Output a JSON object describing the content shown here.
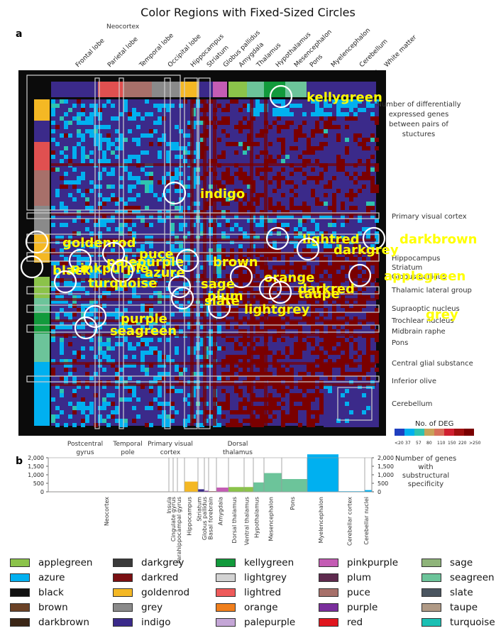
{
  "title": "Color Regions with Fixed-Sized Circles",
  "figure": {
    "panel_a": "a",
    "panel_b": "b",
    "neocortex": "Neocortex",
    "top_labels": [
      "Frontal lobe",
      "Parietal lobe",
      "Temporal lobe",
      "Occipital lobe",
      "Hippocampus",
      "Striatum",
      "Globus pallidus",
      "Amygdala",
      "Thalamus",
      "Hypothalamus",
      "Mesencephalon",
      "Pons",
      "Myelencephalon",
      "Cerebellum",
      "White matter"
    ],
    "right_note": "Number of differentially expressed genes between pairs of stuctures",
    "right_labels": [
      "Primary visual cortex",
      "Hippocampus",
      "Striatum",
      "Globus pallidus",
      "Thalamic lateral group",
      "Supraoptic nucleus",
      "Trochlear nucleus",
      "Midbrain raphe",
      "Pons",
      "Central glial substance",
      "Inferior olive",
      "Cerebellum"
    ],
    "bottom_labels": [
      "Postcentral gyrus",
      "Temporal pole",
      "Primary visual cortex",
      "Dorsal thalamus"
    ],
    "deg_title": "No. of DEG",
    "deg_ticks": [
      "<20",
      "37",
      "57",
      "80",
      "110",
      "150",
      "220",
      ">250"
    ],
    "deg_colors": [
      "#1f3fbf",
      "#00b0f0",
      "#2fc3b0",
      "#c9a25a",
      "#d8705a",
      "#d02030",
      "#a01010",
      "#7a0000"
    ],
    "panel_b_ticks": [
      "2,000",
      "1,500",
      "1,000",
      "500",
      "0"
    ],
    "panel_b_note": "Number of genes with substructural specificity",
    "panel_b_categories": [
      "Neocortex",
      "Insula",
      "Cingulate gyrus",
      "Parahippocampal gyrus",
      "Hippocampus",
      "Striatum",
      "Globus pallidus",
      "Basal forebrain",
      "Amygdala",
      "Dorsal thalamus",
      "Ventral thalamus",
      "Hypothalamus",
      "Mesencephalon",
      "Pons",
      "Myelencephalon",
      "Cerebellar cortex",
      "Cerebellar nuclei"
    ]
  },
  "chart_data": {
    "type": "heatmap",
    "title": "Color Regions with Fixed-Sized Circles",
    "annotations": [
      {
        "label": "kellygreen",
        "color": "#ffff00"
      },
      {
        "label": "indigo",
        "color": "#ffff00"
      },
      {
        "label": "goldenrod",
        "color": "#ffff00"
      },
      {
        "label": "lightred",
        "color": "#ffff00"
      },
      {
        "label": "darkbrown",
        "color": "#ffff00"
      },
      {
        "label": "darkgrey",
        "color": "#ffff00"
      },
      {
        "label": "puce",
        "color": "#ffff00"
      },
      {
        "label": "palepurple",
        "color": "#ffff00"
      },
      {
        "label": "pinkpurple",
        "color": "#ffff00"
      },
      {
        "label": "black",
        "color": "#ffff00"
      },
      {
        "label": "azure",
        "color": "#ffff00"
      },
      {
        "label": "brown",
        "color": "#ffff00"
      },
      {
        "label": "orange",
        "color": "#ffff00"
      },
      {
        "label": "applegreen",
        "color": "#ffff00"
      },
      {
        "label": "turquoise",
        "color": "#ffff00"
      },
      {
        "label": "sage",
        "color": "#ffff00"
      },
      {
        "label": "darkred",
        "color": "#ffff00"
      },
      {
        "label": "taupe",
        "color": "#ffff00"
      },
      {
        "label": "plum",
        "color": "#ffff00"
      },
      {
        "label": "slate",
        "color": "#ffff00"
      },
      {
        "label": "lightgrey",
        "color": "#ffff00"
      },
      {
        "label": "grey",
        "color": "#ffff00"
      },
      {
        "label": "purple",
        "color": "#ffff00"
      },
      {
        "label": "seagreen",
        "color": "#ffff00"
      }
    ],
    "panel_b_bars": {
      "categories": [
        "Neocortex",
        "Insula",
        "Cingulate gyrus",
        "Parahippocampal gyrus",
        "Hippocampus",
        "Striatum",
        "Globus pallidus",
        "Basal forebrain",
        "Amygdala",
        "Dorsal thalamus",
        "Ventral thalamus",
        "Hypothalamus",
        "Mesencephalon",
        "Pons",
        "Myelencephalon",
        "Cerebellar cortex",
        "Cerebellar nuclei"
      ],
      "values": [
        5,
        10,
        10,
        10,
        600,
        150,
        60,
        40,
        250,
        280,
        280,
        550,
        1100,
        750,
        2200,
        30,
        100
      ],
      "ylim": [
        0,
        2000
      ]
    },
    "legend": [
      {
        "name": "applegreen",
        "color": "#8bc34a"
      },
      {
        "name": "azure",
        "color": "#00b0f0"
      },
      {
        "name": "black",
        "color": "#111111"
      },
      {
        "name": "brown",
        "color": "#6b4226"
      },
      {
        "name": "darkbrown",
        "color": "#3b2616"
      },
      {
        "name": "darkgrey",
        "color": "#3a3a3a"
      },
      {
        "name": "darkred",
        "color": "#7a0f12"
      },
      {
        "name": "goldenrod",
        "color": "#f4b824"
      },
      {
        "name": "grey",
        "color": "#8a8a8a"
      },
      {
        "name": "indigo",
        "color": "#3b2a8a"
      },
      {
        "name": "kellygreen",
        "color": "#129a3c"
      },
      {
        "name": "lightgrey",
        "color": "#d3d3d3"
      },
      {
        "name": "lightred",
        "color": "#ee5a5a"
      },
      {
        "name": "orange",
        "color": "#f07f1c"
      },
      {
        "name": "palepurple",
        "color": "#c4a6d6"
      },
      {
        "name": "pinkpurple",
        "color": "#c45cb4"
      },
      {
        "name": "plum",
        "color": "#5e2a4e"
      },
      {
        "name": "puce",
        "color": "#a7706a"
      },
      {
        "name": "purple",
        "color": "#7a2e9c"
      },
      {
        "name": "red",
        "color": "#e0161e"
      },
      {
        "name": "sage",
        "color": "#8fb47a"
      },
      {
        "name": "seagreen",
        "color": "#6cc49a"
      },
      {
        "name": "slate",
        "color": "#4a5560"
      },
      {
        "name": "taupe",
        "color": "#b09a86"
      },
      {
        "name": "turquoise",
        "color": "#1bc0b4"
      }
    ]
  }
}
